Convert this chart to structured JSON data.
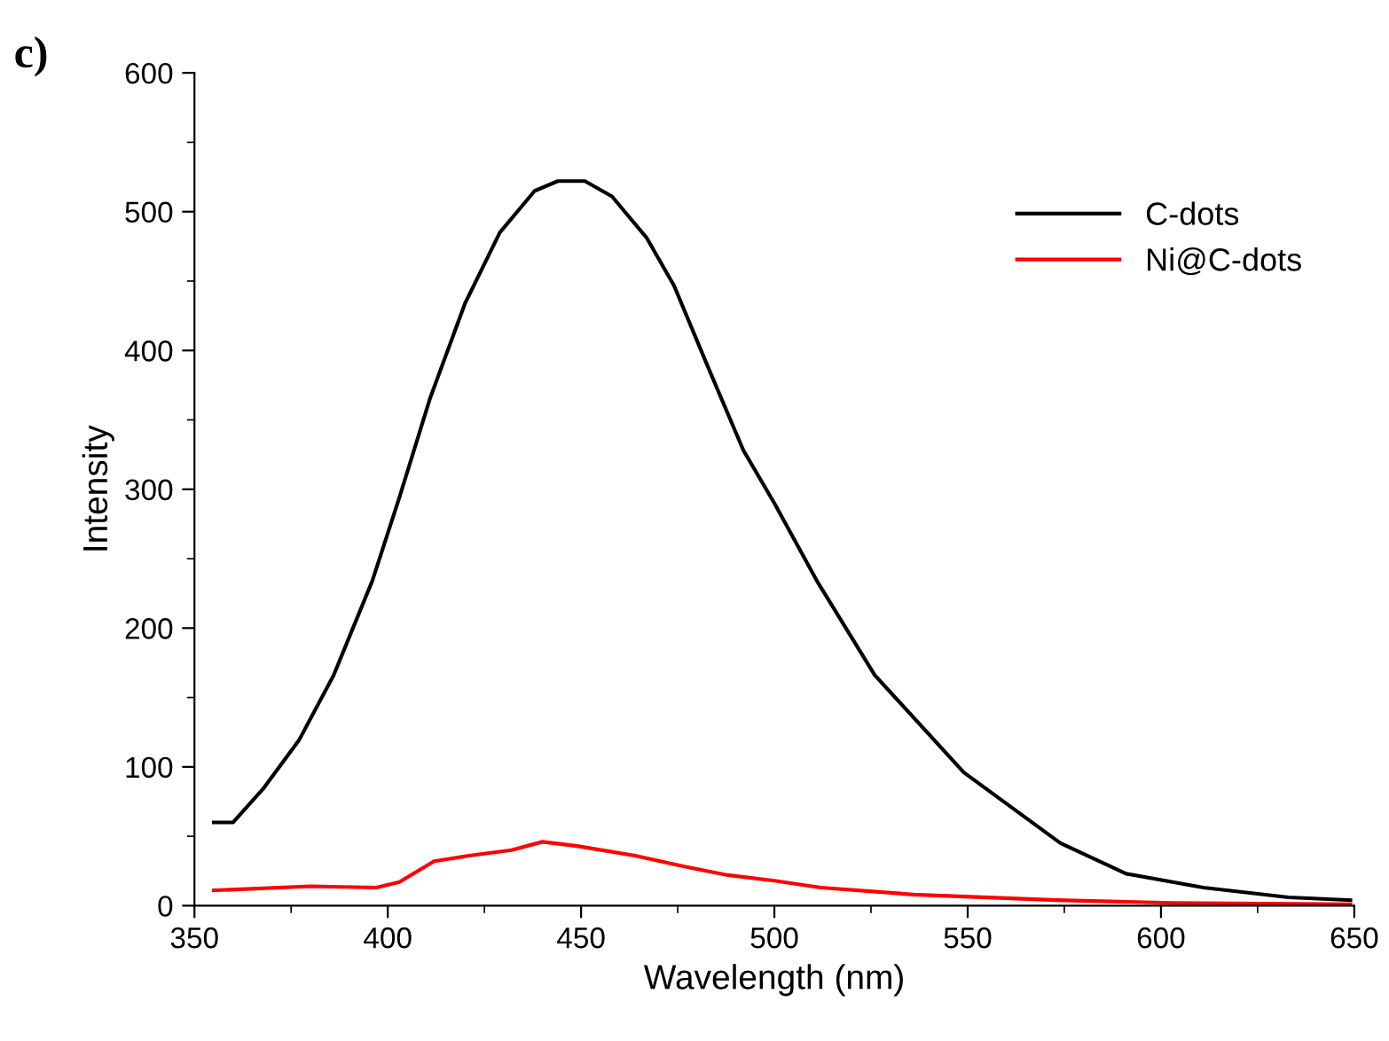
{
  "chart_data": {
    "type": "line",
    "xlabel": "Wavelength (nm)",
    "ylabel": "Intensity",
    "annotations": [
      "c)"
    ],
    "xlim": [
      350,
      650
    ],
    "xticks": [
      350,
      400,
      450,
      500,
      550,
      600,
      650
    ],
    "ylim": [
      0,
      600
    ],
    "yticks": [
      0,
      100,
      200,
      300,
      400,
      500,
      600
    ],
    "legend": "top right",
    "grid": false,
    "marker": "none",
    "line_style": "solid",
    "series": [
      {
        "name": "C-dots",
        "color": "#000000",
        "x": [
          355,
          360,
          368,
          377,
          386,
          396,
          403,
          411,
          420,
          429,
          438,
          444,
          451,
          458,
          467,
          474,
          483,
          492,
          500,
          511,
          526,
          549,
          574,
          591,
          611,
          633,
          649
        ],
        "values": [
          60,
          60,
          85,
          119,
          166,
          234,
          294,
          366,
          434,
          485,
          515,
          522,
          522,
          511,
          481,
          447,
          387,
          328,
          290,
          234,
          166,
          96,
          45,
          23,
          13,
          6,
          4
        ]
      },
      {
        "name": "Ni@C-dots",
        "color": "#ff0000",
        "x": [
          355,
          380,
          397,
          403,
          412,
          421,
          432,
          440,
          449,
          464,
          477,
          488,
          500,
          512,
          536,
          573,
          603,
          649
        ],
        "values": [
          11,
          14,
          13,
          17,
          32,
          36,
          40,
          46,
          43,
          36,
          28,
          22,
          18,
          13,
          8,
          4,
          2,
          1
        ]
      }
    ]
  }
}
